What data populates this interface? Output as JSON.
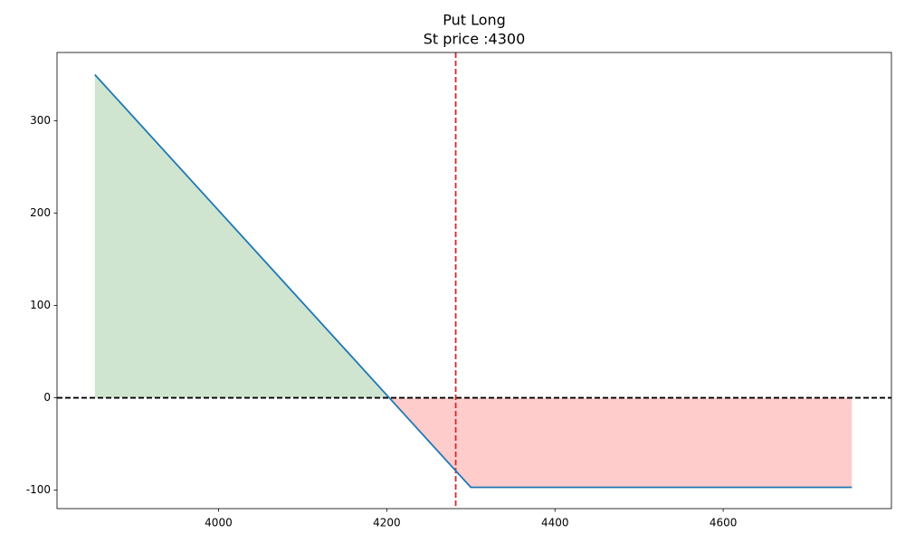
{
  "chart_data": {
    "type": "line",
    "title": [
      "Put Long",
      "St price :4300"
    ],
    "x": [
      3853,
      4203,
      4300,
      4753
    ],
    "series": [
      {
        "color": "#1f77b4",
        "values": [
          350,
          0,
          -97,
          -97
        ]
      }
    ],
    "profit_color": "#cfe5cf",
    "loss_color": "#ffcccc",
    "hlines": [
      {
        "value": 0,
        "color": "#000000",
        "dashed": true
      }
    ],
    "vlines": [
      {
        "value": 4282,
        "color": "#d62728",
        "dashed": true
      }
    ],
    "xlim": [
      3808,
      4800
    ],
    "xticks": [
      4000,
      4200,
      4400,
      4600
    ],
    "ylim": [
      -120,
      374
    ],
    "yticks": [
      -100,
      0,
      100,
      200,
      300
    ],
    "grid": false
  }
}
